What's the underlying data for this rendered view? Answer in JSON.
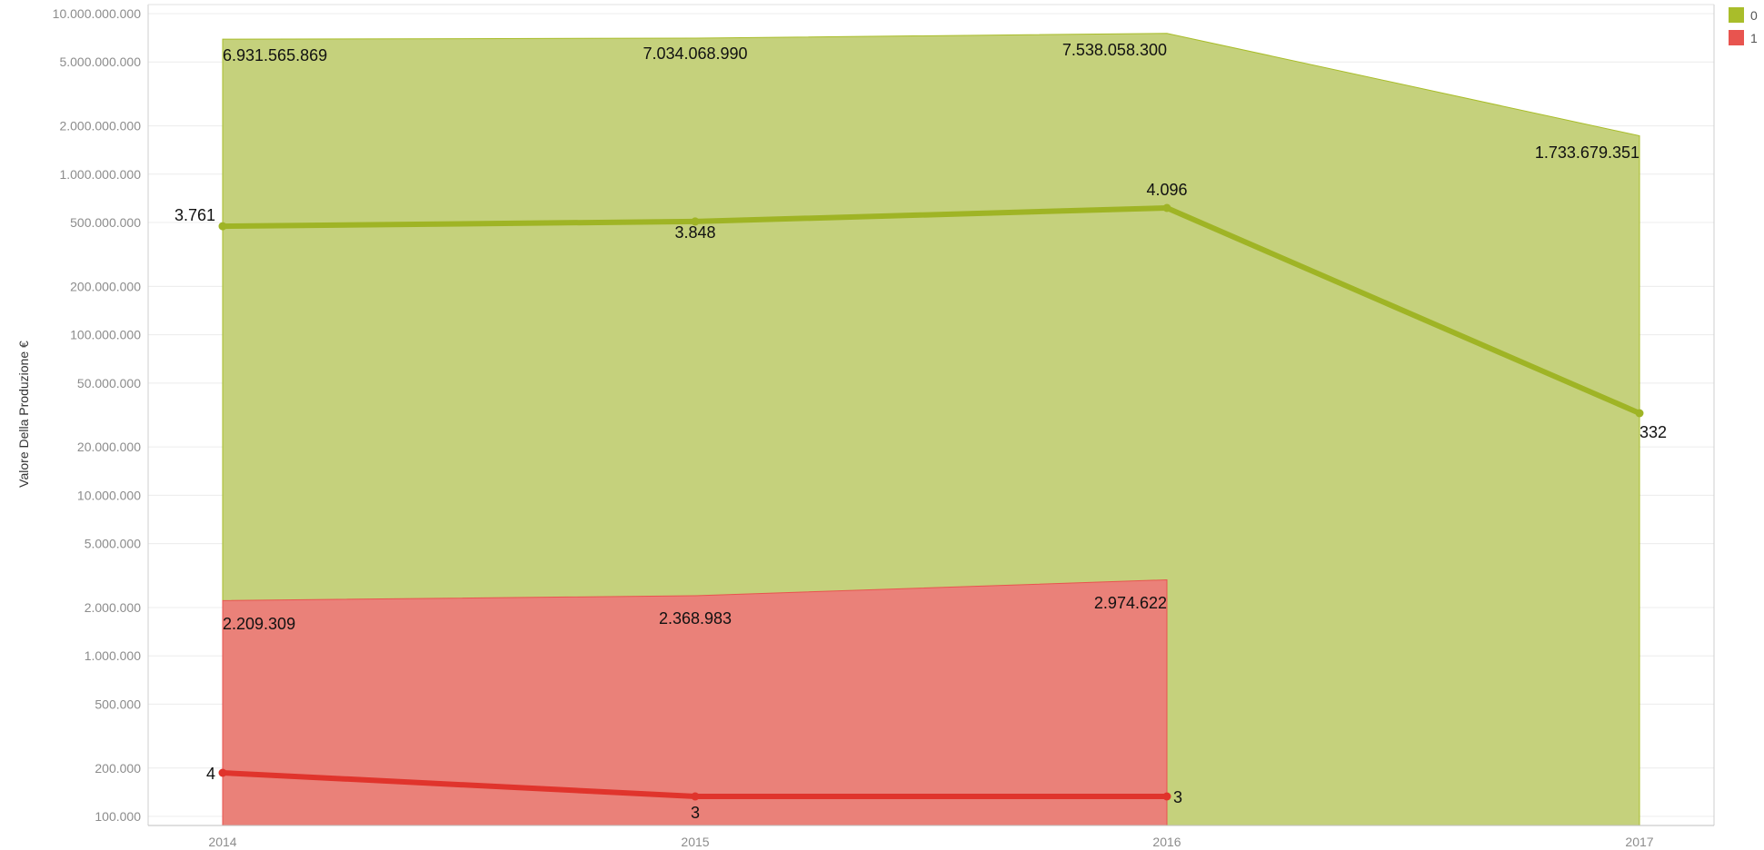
{
  "chart_data": {
    "type": "area",
    "title": "",
    "ylabel": "Valore Della Produzione €",
    "xlabel": "",
    "y_scale": "log",
    "ylim": [
      90000,
      10000000000
    ],
    "grid": true,
    "legend_position": "top-right",
    "x": [
      "2014",
      "2015",
      "2016",
      "2017"
    ],
    "y_tick_values": [
      100000,
      200000,
      500000,
      1000000,
      2000000,
      5000000,
      10000000,
      20000000,
      50000000,
      100000000,
      200000000,
      500000000,
      1000000000,
      2000000000,
      5000000000,
      10000000000
    ],
    "y_tick_labels": [
      "100.000",
      "200.000",
      "500.000",
      "1.000.000",
      "2.000.000",
      "5.000.000",
      "10.000.000",
      "20.000.000",
      "50.000.000",
      "100.000.000",
      "200.000.000",
      "500.000.000",
      "1.000.000.000",
      "2.000.000.000",
      "5.000.000.000",
      "10.000.000.000"
    ],
    "series": [
      {
        "name": "0",
        "color": "#a9bd2a",
        "area_color": "#c5d17c",
        "line_color": "#9fb425",
        "area_values": [
          6931565869,
          7034068990,
          7538058300,
          1733679351
        ],
        "area_labels": [
          "6.931.565.869",
          "7.034.068.990",
          "7.538.058.300",
          "1.733.679.351"
        ],
        "line_values": [
          3761,
          3848,
          4096,
          332
        ],
        "line_labels": [
          "3.761",
          "3.848",
          "4.096",
          "332"
        ]
      },
      {
        "name": "1",
        "color": "#e8544f",
        "area_color": "#eb8079",
        "line_color": "#e0342c",
        "area_values": [
          2209309,
          2368983,
          2974622,
          null
        ],
        "area_labels": [
          "2.209.309",
          "2.368.983",
          "2.974.622",
          ""
        ],
        "line_values": [
          4,
          3,
          3,
          null
        ],
        "line_labels": [
          "4",
          "3",
          "3",
          ""
        ]
      }
    ]
  }
}
